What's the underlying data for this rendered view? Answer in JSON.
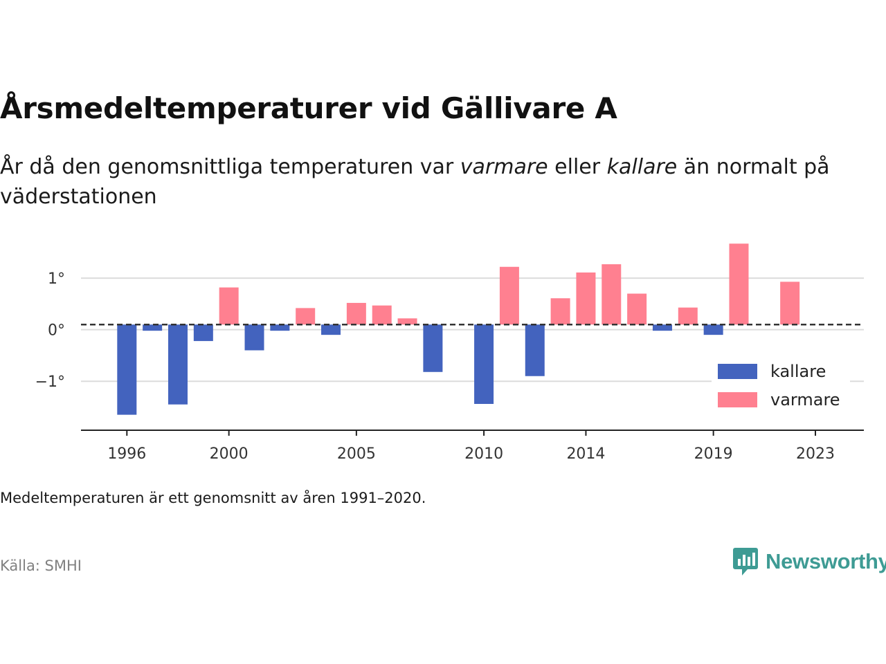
{
  "header": {
    "title": "Årsmedeltemperaturer vid Gällivare A",
    "subtitle_parts": [
      "År då den genomsnittliga temperaturen var ",
      "varmare",
      " eller ",
      "kallare",
      " än normalt på väderstationen"
    ]
  },
  "footer": {
    "note": "Medeltemperaturen är ett genomsnitt av åren 1991–2020.",
    "source": "Källa: SMHI",
    "brand": "Newsworthy"
  },
  "colors": {
    "kallare": "#4363be",
    "varmare": "#ff8090",
    "brand": "#3e9b94"
  },
  "chart_data": {
    "type": "bar",
    "x": [
      1996,
      1997,
      1998,
      1999,
      2000,
      2001,
      2002,
      2003,
      2004,
      2005,
      2006,
      2007,
      2008,
      2009,
      2010,
      2011,
      2012,
      2013,
      2014,
      2015,
      2016,
      2017,
      2018,
      2019,
      2020,
      2021,
      2022
    ],
    "baseline": 0.1,
    "values": [
      -1.65,
      -0.02,
      -1.45,
      -0.22,
      0.82,
      -0.4,
      -0.02,
      0.42,
      -0.1,
      0.52,
      0.47,
      0.22,
      -0.82,
      null,
      -1.44,
      1.22,
      -0.9,
      0.61,
      1.11,
      1.27,
      0.7,
      -0.02,
      0.43,
      -0.1,
      1.67,
      null,
      0.93
    ],
    "series": [
      {
        "name": "kallare"
      },
      {
        "name": "varmare"
      }
    ],
    "x_ticks": [
      "1996",
      "2000",
      "2005",
      "2010",
      "2014",
      "2019",
      "2023"
    ],
    "y_ticks": [
      {
        "value": 1,
        "label": "1°"
      },
      {
        "value": 0,
        "label": "0°"
      },
      {
        "value": -1,
        "label": "−1°"
      }
    ],
    "ylim": [
      -1.95,
      1.7
    ],
    "xlim": [
      1994.2,
      2024.9
    ],
    "grid": true,
    "legend_position": "bottom-right"
  }
}
